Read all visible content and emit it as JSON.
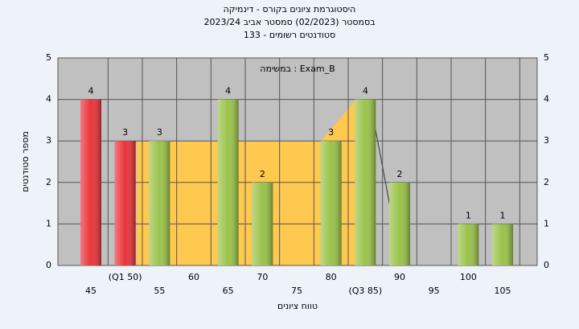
{
  "chart_data": {
    "type": "bar",
    "title": "היסטוגרמת ציונים בקורס - דינמיקה",
    "subtitle": "בסמסטר  (02/2023)  סמסטר אביב 2023/24",
    "subtitle2": "סטודנטים רשומים - 133",
    "annotation": "במשימה : Exam_B",
    "x_label": "טווח ציונים",
    "y_label": "מספר סטודנטים",
    "categories": [
      "45",
      "(Q1 50)",
      "55",
      "60",
      "65",
      "70",
      "75",
      "80",
      "(Q3 85)",
      "90",
      "95",
      "100",
      "105"
    ],
    "values": [
      4,
      3,
      3,
      0,
      4,
      2,
      0,
      3,
      4,
      2,
      0,
      1,
      1
    ],
    "colors": [
      "#e8333a",
      "#e8333a",
      "#9ac24a",
      "#9ac24a",
      "#9ac24a",
      "#9ac24a",
      "#9ac24a",
      "#9ac24a",
      "#9ac24a",
      "#9ac24a",
      "#9ac24a",
      "#9ac24a",
      "#9ac24a"
    ],
    "ylim": [
      0,
      5
    ],
    "yticks": [
      0,
      1,
      2,
      3,
      4,
      5
    ],
    "grid": true
  }
}
